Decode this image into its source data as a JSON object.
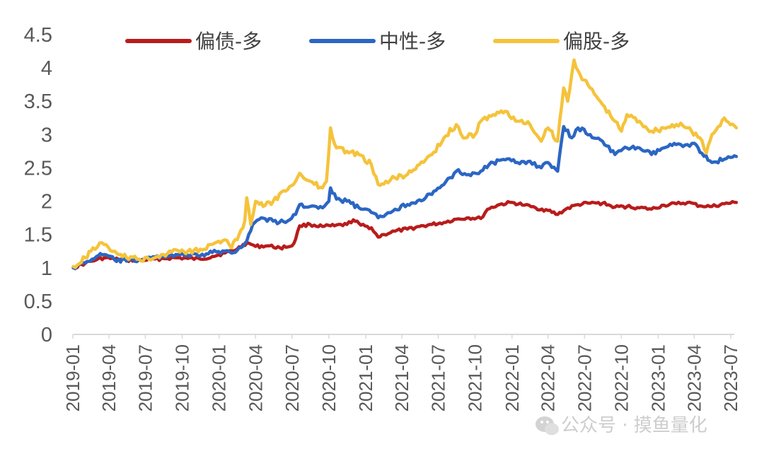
{
  "chart_data": {
    "type": "line",
    "title": "",
    "xlabel": "",
    "ylabel": "",
    "ylim": [
      0,
      4.5
    ],
    "yticks": [
      "0",
      "0.5",
      "1",
      "1.5",
      "2",
      "2.5",
      "3",
      "3.5",
      "4",
      "4.5"
    ],
    "xticks": [
      "2019-01",
      "2019-04",
      "2019-07",
      "2019-10",
      "2020-01",
      "2020-04",
      "2020-07",
      "2020-10",
      "2021-01",
      "2021-04",
      "2021-07",
      "2021-10",
      "2022-01",
      "2022-04",
      "2022-07",
      "2022-10",
      "2023-01",
      "2023-04",
      "2023-07"
    ],
    "grid": false,
    "legend_position": "top",
    "series": [
      {
        "name": "偏债-多",
        "color": "#b81c1c",
        "points": [
          [
            "2019-01-02",
            1.0
          ],
          [
            "2019-02-01",
            1.07
          ],
          [
            "2019-03-01",
            1.12
          ],
          [
            "2019-03-20",
            1.15
          ],
          [
            "2019-04-15",
            1.13
          ],
          [
            "2019-05-15",
            1.11
          ],
          [
            "2019-06-15",
            1.12
          ],
          [
            "2019-07-15",
            1.12
          ],
          [
            "2019-08-15",
            1.14
          ],
          [
            "2019-09-15",
            1.15
          ],
          [
            "2019-10-15",
            1.14
          ],
          [
            "2019-11-15",
            1.13
          ],
          [
            "2019-12-15",
            1.17
          ],
          [
            "2020-01-15",
            1.22
          ],
          [
            "2020-02-15",
            1.28
          ],
          [
            "2020-03-01",
            1.35
          ],
          [
            "2020-03-15",
            1.37
          ],
          [
            "2020-04-01",
            1.32
          ],
          [
            "2020-05-01",
            1.33
          ],
          [
            "2020-06-01",
            1.3
          ],
          [
            "2020-07-01",
            1.33
          ],
          [
            "2020-07-10",
            1.43
          ],
          [
            "2020-07-20",
            1.63
          ],
          [
            "2020-08-15",
            1.65
          ],
          [
            "2020-09-15",
            1.62
          ],
          [
            "2020-10-15",
            1.63
          ],
          [
            "2020-11-15",
            1.65
          ],
          [
            "2020-12-01",
            1.72
          ],
          [
            "2020-12-20",
            1.64
          ],
          [
            "2021-01-15",
            1.6
          ],
          [
            "2021-02-01",
            1.46
          ],
          [
            "2021-02-15",
            1.5
          ],
          [
            "2021-03-15",
            1.55
          ],
          [
            "2021-04-15",
            1.58
          ],
          [
            "2021-05-15",
            1.62
          ],
          [
            "2021-06-15",
            1.65
          ],
          [
            "2021-07-15",
            1.68
          ],
          [
            "2021-08-15",
            1.73
          ],
          [
            "2021-09-15",
            1.75
          ],
          [
            "2021-10-15",
            1.74
          ],
          [
            "2021-11-01",
            1.88
          ],
          [
            "2021-12-01",
            1.95
          ],
          [
            "2022-01-01",
            1.98
          ],
          [
            "2022-02-01",
            1.94
          ],
          [
            "2022-03-01",
            1.9
          ],
          [
            "2022-04-01",
            1.86
          ],
          [
            "2022-04-25",
            1.8
          ],
          [
            "2022-05-15",
            1.88
          ],
          [
            "2022-06-15",
            1.95
          ],
          [
            "2022-07-15",
            1.97
          ],
          [
            "2022-08-15",
            1.97
          ],
          [
            "2022-09-15",
            1.91
          ],
          [
            "2022-10-15",
            1.92
          ],
          [
            "2022-11-15",
            1.9
          ],
          [
            "2022-12-15",
            1.88
          ],
          [
            "2023-01-15",
            1.94
          ],
          [
            "2023-02-15",
            1.96
          ],
          [
            "2023-03-15",
            1.98
          ],
          [
            "2023-04-15",
            1.93
          ],
          [
            "2023-05-15",
            1.92
          ],
          [
            "2023-06-15",
            1.96
          ],
          [
            "2023-07-15",
            1.98
          ]
        ]
      },
      {
        "name": "中性-多",
        "color": "#2b66c4",
        "points": [
          [
            "2019-01-02",
            1.0
          ],
          [
            "2019-02-01",
            1.08
          ],
          [
            "2019-03-01",
            1.17
          ],
          [
            "2019-03-20",
            1.2
          ],
          [
            "2019-04-15",
            1.12
          ],
          [
            "2019-05-15",
            1.1
          ],
          [
            "2019-06-15",
            1.12
          ],
          [
            "2019-07-15",
            1.15
          ],
          [
            "2019-08-15",
            1.17
          ],
          [
            "2019-09-15",
            1.2
          ],
          [
            "2019-10-15",
            1.19
          ],
          [
            "2019-11-15",
            1.18
          ],
          [
            "2019-12-15",
            1.23
          ],
          [
            "2020-01-15",
            1.25
          ],
          [
            "2020-02-01",
            1.22
          ],
          [
            "2020-02-20",
            1.3
          ],
          [
            "2020-03-10",
            1.4
          ],
          [
            "2020-03-25",
            1.65
          ],
          [
            "2020-04-15",
            1.75
          ],
          [
            "2020-05-15",
            1.7
          ],
          [
            "2020-06-15",
            1.68
          ],
          [
            "2020-07-10",
            1.8
          ],
          [
            "2020-07-20",
            1.95
          ],
          [
            "2020-08-15",
            1.92
          ],
          [
            "2020-09-15",
            1.9
          ],
          [
            "2020-10-01",
            2.0
          ],
          [
            "2020-10-05",
            2.2
          ],
          [
            "2020-10-20",
            2.03
          ],
          [
            "2020-11-15",
            2.0
          ],
          [
            "2020-12-15",
            1.9
          ],
          [
            "2021-01-15",
            1.83
          ],
          [
            "2021-02-01",
            1.75
          ],
          [
            "2021-02-20",
            1.8
          ],
          [
            "2021-03-15",
            1.88
          ],
          [
            "2021-04-15",
            1.95
          ],
          [
            "2021-05-15",
            2.02
          ],
          [
            "2021-06-15",
            2.1
          ],
          [
            "2021-07-15",
            2.25
          ],
          [
            "2021-08-15",
            2.45
          ],
          [
            "2021-09-15",
            2.4
          ],
          [
            "2021-10-15",
            2.45
          ],
          [
            "2021-11-15",
            2.58
          ],
          [
            "2021-12-15",
            2.62
          ],
          [
            "2022-01-15",
            2.58
          ],
          [
            "2022-02-15",
            2.6
          ],
          [
            "2022-03-15",
            2.5
          ],
          [
            "2022-04-01",
            2.58
          ],
          [
            "2022-04-25",
            2.45
          ],
          [
            "2022-05-10",
            3.12
          ],
          [
            "2022-05-30",
            2.95
          ],
          [
            "2022-06-15",
            3.1
          ],
          [
            "2022-07-15",
            3.0
          ],
          [
            "2022-08-15",
            2.9
          ],
          [
            "2022-09-15",
            2.7
          ],
          [
            "2022-10-15",
            2.8
          ],
          [
            "2022-11-15",
            2.8
          ],
          [
            "2022-12-15",
            2.7
          ],
          [
            "2023-01-15",
            2.8
          ],
          [
            "2023-02-15",
            2.85
          ],
          [
            "2023-03-15",
            2.85
          ],
          [
            "2023-04-01",
            2.87
          ],
          [
            "2023-04-20",
            2.72
          ],
          [
            "2023-05-15",
            2.58
          ],
          [
            "2023-06-15",
            2.63
          ],
          [
            "2023-07-15",
            2.67
          ]
        ]
      },
      {
        "name": "偏股-多",
        "color": "#f5c33b",
        "points": [
          [
            "2019-01-02",
            1.02
          ],
          [
            "2019-02-01",
            1.15
          ],
          [
            "2019-02-20",
            1.3
          ],
          [
            "2019-03-20",
            1.35
          ],
          [
            "2019-04-15",
            1.25
          ],
          [
            "2019-05-15",
            1.15
          ],
          [
            "2019-06-15",
            1.13
          ],
          [
            "2019-07-15",
            1.12
          ],
          [
            "2019-08-15",
            1.2
          ],
          [
            "2019-09-15",
            1.27
          ],
          [
            "2019-10-15",
            1.25
          ],
          [
            "2019-11-15",
            1.28
          ],
          [
            "2019-12-15",
            1.35
          ],
          [
            "2020-01-15",
            1.42
          ],
          [
            "2020-02-01",
            1.3
          ],
          [
            "2020-02-20",
            1.5
          ],
          [
            "2020-03-05",
            1.7
          ],
          [
            "2020-03-10",
            2.05
          ],
          [
            "2020-03-20",
            1.65
          ],
          [
            "2020-04-01",
            2.0
          ],
          [
            "2020-04-20",
            1.92
          ],
          [
            "2020-05-15",
            2.0
          ],
          [
            "2020-06-15",
            2.15
          ],
          [
            "2020-07-10",
            2.3
          ],
          [
            "2020-07-20",
            2.42
          ],
          [
            "2020-08-15",
            2.3
          ],
          [
            "2020-09-15",
            2.2
          ],
          [
            "2020-09-25",
            2.3
          ],
          [
            "2020-10-05",
            3.1
          ],
          [
            "2020-10-20",
            2.8
          ],
          [
            "2020-11-15",
            2.75
          ],
          [
            "2020-12-15",
            2.7
          ],
          [
            "2021-01-15",
            2.55
          ],
          [
            "2021-02-01",
            2.25
          ],
          [
            "2021-02-20",
            2.3
          ],
          [
            "2021-03-15",
            2.35
          ],
          [
            "2021-04-15",
            2.4
          ],
          [
            "2021-05-15",
            2.55
          ],
          [
            "2021-06-15",
            2.7
          ],
          [
            "2021-07-15",
            2.95
          ],
          [
            "2021-08-15",
            3.15
          ],
          [
            "2021-09-01",
            2.95
          ],
          [
            "2021-10-01",
            3.0
          ],
          [
            "2021-10-15",
            3.2
          ],
          [
            "2021-11-15",
            3.3
          ],
          [
            "2021-12-15",
            3.35
          ],
          [
            "2022-01-15",
            3.2
          ],
          [
            "2022-02-15",
            3.15
          ],
          [
            "2022-03-15",
            2.9
          ],
          [
            "2022-04-01",
            3.1
          ],
          [
            "2022-04-25",
            2.9
          ],
          [
            "2022-05-10",
            3.7
          ],
          [
            "2022-05-20",
            3.5
          ],
          [
            "2022-06-05",
            4.12
          ],
          [
            "2022-06-20",
            3.9
          ],
          [
            "2022-07-15",
            3.7
          ],
          [
            "2022-08-15",
            3.45
          ],
          [
            "2022-09-15",
            3.2
          ],
          [
            "2022-10-01",
            3.05
          ],
          [
            "2022-10-15",
            3.3
          ],
          [
            "2022-11-15",
            3.2
          ],
          [
            "2022-12-15",
            3.05
          ],
          [
            "2023-01-15",
            3.1
          ],
          [
            "2023-02-15",
            3.15
          ],
          [
            "2023-03-15",
            3.1
          ],
          [
            "2023-04-15",
            2.95
          ],
          [
            "2023-05-01",
            2.72
          ],
          [
            "2023-05-15",
            3.0
          ],
          [
            "2023-06-15",
            3.25
          ],
          [
            "2023-07-15",
            3.1
          ]
        ]
      }
    ]
  },
  "watermark": {
    "icon": "wechat-icon",
    "text": "公众号 · 摸鱼量化"
  }
}
